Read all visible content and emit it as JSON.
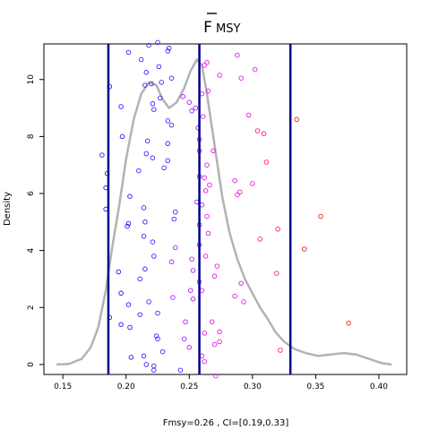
{
  "chart_data": {
    "type": "scatter",
    "title": "F",
    "title_subscript": "MSY",
    "title_overbar": true,
    "xlabel": "Fmsy=0.26 , CI=[0.19,0.33]",
    "ylabel": "Density",
    "xlim": [
      0.135,
      0.422
    ],
    "ylim": [
      -0.35,
      11.25
    ],
    "xticks": [
      0.15,
      0.2,
      0.25,
      0.3,
      0.35,
      0.4
    ],
    "xtick_labels": [
      "0.15",
      "0.20",
      "0.25",
      "0.30",
      "0.35",
      "0.40"
    ],
    "yticks": [
      0,
      2,
      4,
      6,
      8,
      10
    ],
    "ytick_labels": [
      "0",
      "2",
      "4",
      "6",
      "8",
      "10"
    ],
    "grid": false,
    "vlines": [
      {
        "x": 0.186,
        "color": "#00008b"
      },
      {
        "x": 0.258,
        "color": "#00008b"
      },
      {
        "x": 0.33,
        "color": "#00008b"
      }
    ],
    "density_curve": {
      "color": "#b3b3b3",
      "x": [
        0.145,
        0.155,
        0.165,
        0.172,
        0.178,
        0.184,
        0.189,
        0.195,
        0.2,
        0.206,
        0.212,
        0.218,
        0.224,
        0.229,
        0.234,
        0.24,
        0.246,
        0.251,
        0.256,
        0.26,
        0.264,
        0.27,
        0.276,
        0.282,
        0.288,
        0.294,
        0.3,
        0.306,
        0.312,
        0.318,
        0.325,
        0.333,
        0.342,
        0.352,
        0.362,
        0.372,
        0.382,
        0.392,
        0.402,
        0.41
      ],
      "y": [
        0.0,
        0.02,
        0.2,
        0.6,
        1.3,
        2.6,
        4.1,
        5.7,
        7.2,
        8.6,
        9.5,
        9.9,
        9.8,
        9.3,
        9.0,
        9.2,
        9.7,
        10.3,
        10.7,
        10.5,
        9.5,
        7.7,
        5.9,
        4.6,
        3.7,
        3.0,
        2.5,
        2.0,
        1.6,
        1.15,
        0.8,
        0.55,
        0.4,
        0.3,
        0.35,
        0.4,
        0.35,
        0.2,
        0.05,
        0.0
      ]
    },
    "series": [
      {
        "name": "",
        "color": "#1a1aff",
        "points": [
          [
            0.187,
            9.75
          ],
          [
            0.196,
            9.05
          ],
          [
            0.181,
            7.35
          ],
          [
            0.185,
            6.7
          ],
          [
            0.184,
            6.2
          ],
          [
            0.184,
            5.45
          ],
          [
            0.197,
            8.0
          ],
          [
            0.187,
            1.65
          ],
          [
            0.194,
            3.25
          ],
          [
            0.196,
            2.5
          ],
          [
            0.196,
            1.4
          ],
          [
            0.201,
            4.85
          ],
          [
            0.202,
            4.95
          ],
          [
            0.203,
            5.9
          ],
          [
            0.202,
            2.1
          ],
          [
            0.203,
            1.3
          ],
          [
            0.204,
            0.25
          ]
        ]
      },
      {
        "name": "",
        "color": "#4d1aff",
        "points": [
          [
            0.218,
            11.2
          ],
          [
            0.225,
            11.3
          ],
          [
            0.233,
            11.0
          ],
          [
            0.234,
            11.1
          ],
          [
            0.202,
            10.95
          ],
          [
            0.212,
            10.7
          ],
          [
            0.216,
            10.25
          ],
          [
            0.226,
            10.45
          ],
          [
            0.22,
            9.85
          ],
          [
            0.228,
            9.9
          ],
          [
            0.236,
            10.05
          ],
          [
            0.215,
            9.8
          ],
          [
            0.221,
            9.15
          ],
          [
            0.227,
            9.35
          ],
          [
            0.222,
            8.95
          ],
          [
            0.233,
            8.55
          ],
          [
            0.236,
            8.4
          ],
          [
            0.217,
            7.85
          ],
          [
            0.233,
            7.75
          ],
          [
            0.216,
            7.4
          ],
          [
            0.221,
            7.25
          ],
          [
            0.233,
            7.15
          ],
          [
            0.23,
            6.9
          ],
          [
            0.21,
            6.8
          ],
          [
            0.214,
            5.5
          ],
          [
            0.215,
            5.0
          ],
          [
            0.239,
            5.35
          ],
          [
            0.238,
            5.1
          ],
          [
            0.214,
            4.5
          ],
          [
            0.221,
            4.3
          ],
          [
            0.222,
            3.8
          ],
          [
            0.215,
            3.35
          ],
          [
            0.211,
            3.0
          ],
          [
            0.218,
            2.2
          ],
          [
            0.225,
            1.8
          ],
          [
            0.211,
            1.75
          ],
          [
            0.224,
            1.0
          ],
          [
            0.225,
            0.9
          ],
          [
            0.229,
            0.45
          ],
          [
            0.214,
            0.3
          ],
          [
            0.216,
            0.0
          ],
          [
            0.222,
            -0.05
          ],
          [
            0.222,
            -0.2
          ],
          [
            0.243,
            -0.2
          ]
        ]
      },
      {
        "name": "",
        "color": "#b31aff",
        "points": [
          [
            0.245,
            9.4
          ],
          [
            0.25,
            9.2
          ],
          [
            0.255,
            9.0
          ],
          [
            0.252,
            8.9
          ],
          [
            0.257,
            8.3
          ],
          [
            0.258,
            7.9
          ],
          [
            0.258,
            7.5
          ],
          [
            0.258,
            6.6
          ],
          [
            0.256,
            5.7
          ],
          [
            0.26,
            5.6
          ],
          [
            0.258,
            4.9
          ],
          [
            0.258,
            4.2
          ],
          [
            0.252,
            3.7
          ],
          [
            0.253,
            3.3
          ],
          [
            0.258,
            2.9
          ],
          [
            0.251,
            2.6
          ],
          [
            0.253,
            2.3
          ],
          [
            0.247,
            1.5
          ],
          [
            0.246,
            0.9
          ],
          [
            0.25,
            0.6
          ],
          [
            0.237,
            2.35
          ],
          [
            0.239,
            4.1
          ],
          [
            0.236,
            3.6
          ]
        ]
      },
      {
        "name": "",
        "color": "#e61ae6",
        "points": [
          [
            0.264,
            10.6
          ],
          [
            0.262,
            10.5
          ],
          [
            0.26,
            9.5
          ],
          [
            0.265,
            9.6
          ],
          [
            0.261,
            8.7
          ],
          [
            0.269,
            7.5
          ],
          [
            0.264,
            7.0
          ],
          [
            0.262,
            6.55
          ],
          [
            0.263,
            6.1
          ],
          [
            0.266,
            6.3
          ],
          [
            0.264,
            5.2
          ],
          [
            0.265,
            4.6
          ],
          [
            0.263,
            3.8
          ],
          [
            0.27,
            3.1
          ],
          [
            0.272,
            3.45
          ],
          [
            0.26,
            2.6
          ],
          [
            0.262,
            1.1
          ],
          [
            0.26,
            0.3
          ],
          [
            0.268,
            1.5
          ],
          [
            0.27,
            0.7
          ],
          [
            0.274,
            1.15
          ],
          [
            0.274,
            0.8
          ],
          [
            0.262,
            0.1
          ],
          [
            0.271,
            -0.4
          ],
          [
            0.274,
            10.15
          ],
          [
            0.288,
            10.85
          ],
          [
            0.291,
            10.05
          ],
          [
            0.297,
            8.75
          ],
          [
            0.286,
            6.45
          ],
          [
            0.288,
            5.95
          ],
          [
            0.29,
            6.05
          ],
          [
            0.293,
            2.2
          ],
          [
            0.291,
            2.85
          ],
          [
            0.286,
            2.4
          ],
          [
            0.302,
            10.35
          ],
          [
            0.3,
            6.35
          ]
        ]
      },
      {
        "name": "",
        "color": "#ff1a8c",
        "points": [
          [
            0.304,
            8.2
          ],
          [
            0.309,
            8.1
          ],
          [
            0.311,
            7.1
          ],
          [
            0.306,
            4.4
          ],
          [
            0.32,
            4.75
          ],
          [
            0.319,
            3.2
          ],
          [
            0.322,
            0.5
          ]
        ]
      },
      {
        "name": "",
        "color": "#e6261a",
        "points": [
          [
            0.335,
            8.6
          ],
          [
            0.341,
            4.05
          ],
          [
            0.354,
            5.2
          ],
          [
            0.376,
            1.45
          ]
        ]
      }
    ]
  }
}
